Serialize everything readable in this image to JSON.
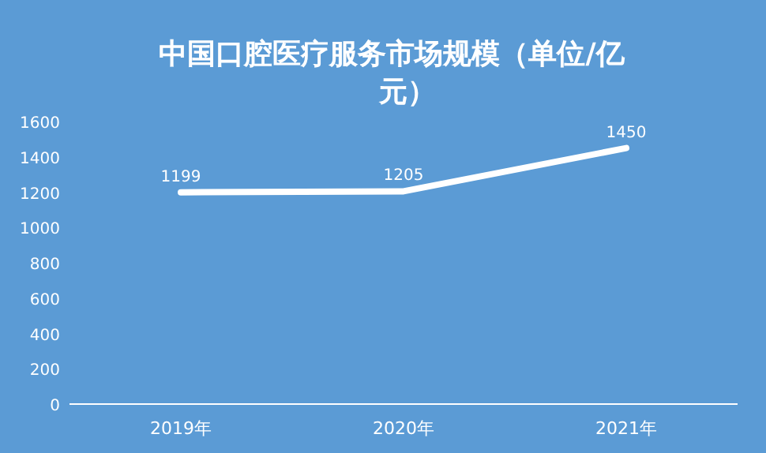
{
  "chart_data": {
    "type": "line",
    "title": "中国口腔医疗服务市场规模（单位/亿元）",
    "categories": [
      "2019年",
      "2020年",
      "2021年"
    ],
    "series": [
      {
        "color": "#ffffff",
        "values": [
          1199,
          1205,
          1450
        ]
      }
    ],
    "ylim": [
      0,
      1600
    ],
    "yticks": [
      0,
      200,
      400,
      600,
      800,
      1000,
      1200,
      1400,
      1600
    ],
    "data_labels": true,
    "grid": false,
    "marker": "none",
    "line_style": "solid"
  }
}
